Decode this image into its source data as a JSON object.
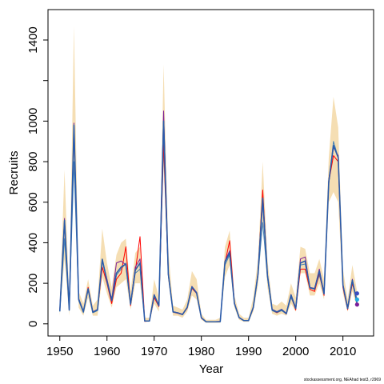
{
  "chart_data": {
    "type": "line",
    "title": "",
    "xlabel": "Year",
    "ylabel": "Recruits",
    "xlim": [
      1947.5,
      2016.5
    ],
    "ylim": [
      -60,
      1550
    ],
    "x_ticks": [
      1950,
      1960,
      1970,
      1980,
      1990,
      2000,
      2010
    ],
    "y_ticks": [
      0,
      200,
      400,
      600,
      800,
      1000,
      1200,
      1400
    ],
    "y_tick_labels": [
      "0",
      "200",
      "400",
      "600",
      "800",
      "1000",
      "",
      "1400"
    ],
    "grid": false,
    "legend": "none",
    "credit": "stockassessment.org, NEAhad test3, r2969",
    "years": [
      1950,
      1951,
      1952,
      1953,
      1954,
      1955,
      1956,
      1957,
      1958,
      1959,
      1960,
      1961,
      1962,
      1963,
      1964,
      1965,
      1966,
      1967,
      1968,
      1969,
      1970,
      1971,
      1972,
      1973,
      1974,
      1975,
      1976,
      1977,
      1978,
      1979,
      1980,
      1981,
      1982,
      1983,
      1984,
      1985,
      1986,
      1987,
      1988,
      1989,
      1990,
      1991,
      1992,
      1993,
      1994,
      1995,
      1996,
      1997,
      1998,
      1999,
      2000,
      2001,
      2002,
      2003,
      2004,
      2005,
      2006,
      2007,
      2008,
      2009,
      2010,
      2011,
      2012,
      2013
    ],
    "band": {
      "color": "#f5deb3",
      "lower": [
        40,
        320,
        40,
        800,
        80,
        40,
        130,
        40,
        40,
        230,
        150,
        80,
        180,
        200,
        220,
        70,
        200,
        200,
        10,
        10,
        100,
        60,
        780,
        210,
        40,
        40,
        30,
        60,
        140,
        120,
        20,
        5,
        5,
        5,
        5,
        230,
        290,
        80,
        20,
        10,
        10,
        60,
        190,
        500,
        180,
        50,
        40,
        50,
        40,
        100,
        60,
        250,
        250,
        140,
        140,
        200,
        120,
        600,
        650,
        600,
        150,
        60,
        160,
        80
      ],
      "upper": [
        100,
        760,
        120,
        1470,
        160,
        100,
        220,
        90,
        120,
        470,
        300,
        180,
        340,
        400,
        420,
        160,
        350,
        380,
        30,
        30,
        220,
        130,
        1280,
        360,
        90,
        80,
        70,
        120,
        260,
        220,
        50,
        20,
        20,
        20,
        30,
        380,
        460,
        140,
        50,
        30,
        30,
        130,
        320,
        800,
        320,
        100,
        90,
        110,
        90,
        200,
        130,
        380,
        370,
        250,
        250,
        320,
        220,
        820,
        1120,
        970,
        270,
        120,
        290,
        160
      ]
    },
    "series": [
      {
        "color": "#4682b4",
        "values": [
          60,
          420,
          70,
          800,
          115,
          55,
          170,
          55,
          65,
          320,
          205,
          110,
          240,
          270,
          300,
          100,
          250,
          270,
          15,
          15,
          140,
          90,
          880,
          240,
          60,
          55,
          45,
          80,
          180,
          150,
          30,
          10,
          10,
          10,
          10,
          290,
          340,
          100,
          30,
          15,
          15,
          80,
          240,
          500,
          230,
          65,
          55,
          65,
          50,
          130,
          75,
          290,
          295,
          180,
          170,
          240,
          150,
          690,
          900,
          820,
          190,
          75,
          210,
          120
        ]
      },
      {
        "color": "#ff0000",
        "values": [
          70,
          500,
          75,
          960,
          120,
          60,
          180,
          60,
          70,
          280,
          200,
          100,
          220,
          250,
          380,
          90,
          260,
          430,
          12,
          14,
          130,
          85,
          900,
          240,
          58,
          52,
          45,
          78,
          175,
          150,
          28,
          10,
          10,
          10,
          12,
          300,
          410,
          105,
          30,
          16,
          16,
          78,
          250,
          660,
          240,
          70,
          55,
          70,
          48,
          140,
          68,
          270,
          270,
          170,
          160,
          250,
          140,
          700,
          830,
          800,
          180,
          70,
          200,
          110
        ]
      },
      {
        "color": "#7a1f99",
        "values": [
          65,
          520,
          70,
          990,
          125,
          62,
          175,
          58,
          72,
          315,
          220,
          120,
          300,
          310,
          290,
          95,
          280,
          320,
          14,
          14,
          145,
          92,
          1050,
          250,
          60,
          55,
          48,
          82,
          185,
          155,
          31,
          11,
          11,
          11,
          12,
          310,
          360,
          102,
          32,
          17,
          17,
          82,
          240,
          600,
          245,
          72,
          60,
          72,
          52,
          145,
          78,
          320,
          330,
          180,
          175,
          270,
          150,
          710,
          870,
          830,
          195,
          78,
          220,
          95
        ]
      },
      {
        "color": "#2a5caa",
        "values": [
          62,
          510,
          68,
          980,
          122,
          60,
          172,
          57,
          70,
          318,
          210,
          115,
          250,
          280,
          295,
          98,
          265,
          300,
          14,
          14,
          142,
          90,
          1000,
          245,
          59,
          54,
          46,
          81,
          182,
          152,
          30,
          10,
          10,
          10,
          11,
          305,
          350,
          101,
          31,
          16,
          16,
          81,
          245,
          620,
          240,
          70,
          58,
          70,
          50,
          142,
          76,
          300,
          310,
          178,
          172,
          260,
          148,
          700,
          880,
          820,
          192,
          76,
          215,
          100
        ]
      }
    ],
    "end_points": [
      {
        "year": 2013,
        "value": 150,
        "color": "#3b4cc0"
      },
      {
        "year": 2013,
        "value": 120,
        "color": "#22aadd"
      },
      {
        "year": 2013,
        "value": 95,
        "color": "#7a1f99"
      }
    ]
  }
}
